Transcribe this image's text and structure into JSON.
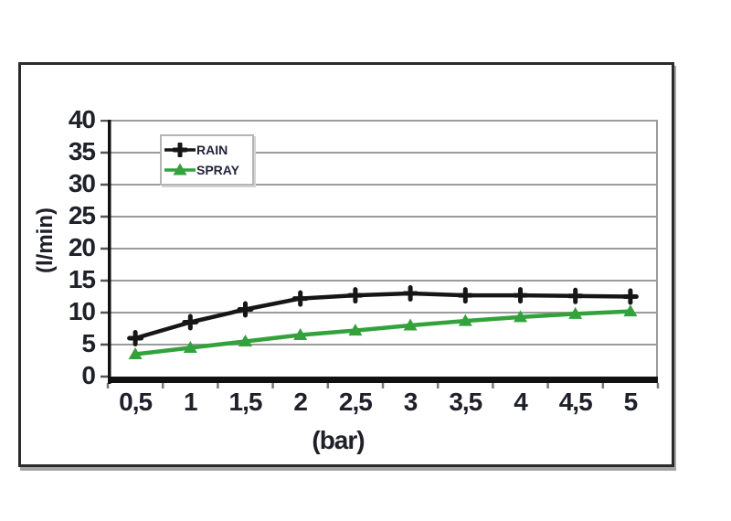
{
  "chart_data": {
    "type": "line",
    "title": "",
    "xlabel": "(bar)",
    "ylabel": "(l/min)",
    "x_values": [
      0.5,
      1,
      1.5,
      2,
      2.5,
      3,
      3.5,
      4,
      4.5,
      5
    ],
    "x_tick_labels": [
      "0,5",
      "1",
      "1,5",
      "2",
      "2,5",
      "3",
      "3,5",
      "4",
      "4,5",
      "5"
    ],
    "y_ticks": [
      0,
      5,
      10,
      15,
      20,
      25,
      30,
      35,
      40
    ],
    "ylim": [
      0,
      40
    ],
    "grid": "horizontal",
    "legend_position": "top-left-inside",
    "series": [
      {
        "name": "RAIN",
        "color": "#161616",
        "marker": "plus",
        "values": [
          6,
          8.5,
          10.5,
          12.2,
          12.7,
          13,
          12.7,
          12.7,
          12.6,
          12.5
        ]
      },
      {
        "name": "SPRAY",
        "color": "#33a23d",
        "marker": "triangle-up",
        "values": [
          3.5,
          4.5,
          5.5,
          6.5,
          7.2,
          8,
          8.7,
          9.3,
          9.8,
          10.2
        ]
      }
    ]
  },
  "colors": {
    "figure_border": "#2b2b2b",
    "axis": "#111111",
    "grid": "#9b9b9b",
    "tick": "#555555",
    "text": "#20202a",
    "legend_border": "#b5b5b5",
    "background": "#ffffff"
  }
}
